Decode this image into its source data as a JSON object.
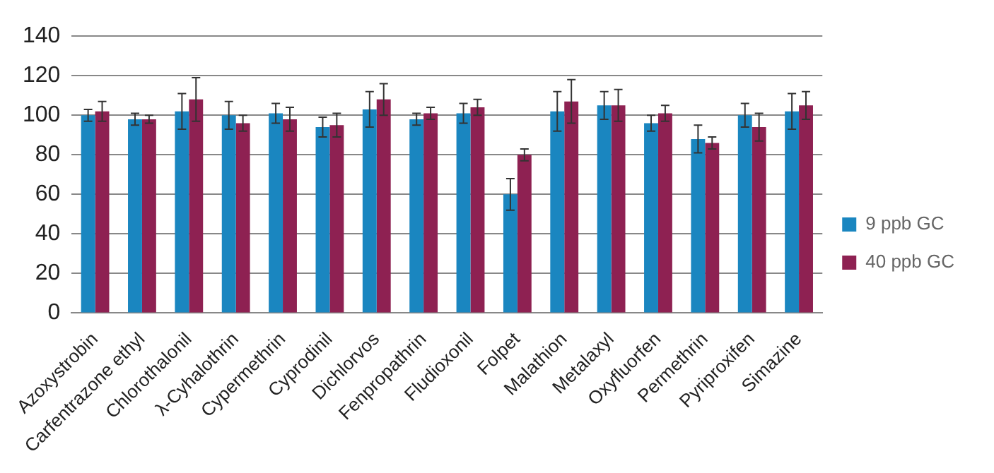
{
  "chart_data": {
    "type": "bar",
    "categories": [
      "Azoxystrobin",
      "Carfentrazone ethyl",
      "Chlorothalonil",
      "λ-Cyhalothrin",
      "Cypermethrin",
      "Cyprodinil",
      "Dichlorvos",
      "Fenpropathrin",
      "Fludioxonil",
      "Folpet",
      "Malathion",
      "Metalaxyl",
      "Oxyfluorfen",
      "Permethrin",
      "Pyriproxifen",
      "Simazine"
    ],
    "series": [
      {
        "name": "9 ppb GC",
        "color": "#1a86c0",
        "values": [
          100,
          98,
          102,
          100,
          101,
          94,
          103,
          98,
          101,
          60,
          102,
          105,
          96,
          88,
          100,
          102
        ],
        "errors": [
          3,
          3,
          9,
          7,
          5,
          5,
          9,
          3,
          5,
          8,
          10,
          7,
          4,
          7,
          6,
          9
        ]
      },
      {
        "name": "40 ppb GC",
        "color": "#8e2152",
        "values": [
          102,
          98,
          108,
          96,
          98,
          95,
          108,
          101,
          104,
          80,
          107,
          105,
          101,
          86,
          94,
          105
        ],
        "errors": [
          5,
          2,
          11,
          4,
          6,
          6,
          8,
          3,
          4,
          3,
          11,
          8,
          4,
          3,
          7,
          7
        ]
      }
    ],
    "ylim": [
      0,
      140
    ],
    "yticks": [
      0,
      20,
      40,
      60,
      80,
      100,
      120,
      140
    ],
    "grid": "y",
    "legend": "right"
  }
}
